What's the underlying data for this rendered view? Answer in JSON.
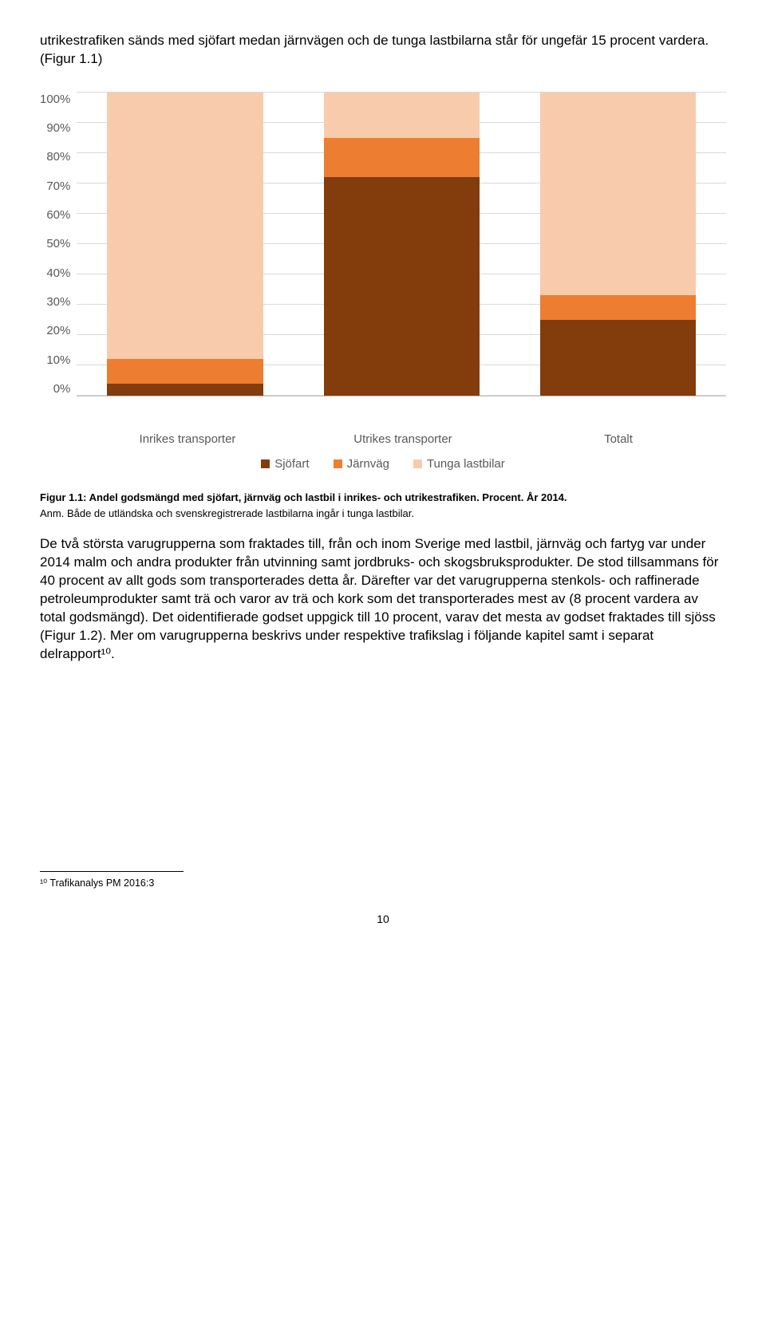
{
  "intro": "utrikestrafiken sänds med sjöfart medan järnvägen och de tunga lastbilarna står för ungefär 15 procent vardera. (Figur 1.1)",
  "chart": {
    "type": "stacked-bar",
    "ylim": [
      0,
      100
    ],
    "ytick_step": 10,
    "yticks": [
      "100%",
      "90%",
      "80%",
      "70%",
      "60%",
      "50%",
      "40%",
      "30%",
      "20%",
      "10%",
      "0%"
    ],
    "categories": [
      "Inrikes transporter",
      "Utrikes transporter",
      "Totalt"
    ],
    "series": [
      {
        "name": "Sjöfart",
        "color": "#833c0c"
      },
      {
        "name": "Järnväg",
        "color": "#ed7d31"
      },
      {
        "name": "Tunga lastbilar",
        "color": "#f8cbad"
      }
    ],
    "stacks": [
      {
        "sjofart": 4,
        "jarnvag": 8,
        "lastbilar": 88
      },
      {
        "sjofart": 72,
        "jarnvag": 13,
        "lastbilar": 15
      },
      {
        "sjofart": 25,
        "jarnvag": 8,
        "lastbilar": 67
      }
    ],
    "grid_color": "#d9d9d9",
    "tick_color": "#595959"
  },
  "legend": {
    "items": [
      "Sjöfart",
      "Järnväg",
      "Tunga lastbilar"
    ]
  },
  "caption": "Figur 1.1: Andel godsmängd med sjöfart, järnväg och lastbil i inrikes- och utrikestrafiken. Procent. År 2014.",
  "note": "Anm. Både de utländska och svenskregistrerade lastbilarna ingår i tunga lastbilar.",
  "body": "De två största varugrupperna som fraktades till, från och inom Sverige med lastbil, järnväg och fartyg var under 2014 malm och andra produkter från utvinning samt jordbruks- och skogsbruksprodukter. De stod tillsammans för 40 procent av allt gods som transporterades detta år. Därefter var det varugrupperna stenkols- och raffinerade petroleumprodukter samt trä och varor av trä och kork som det transporterades mest av (8 procent vardera av total godsmängd). Det oidentifierade godset uppgick till 10 procent, varav det mesta av godset fraktades till sjöss (Figur 1.2). Mer om varugrupperna beskrivs under respektive trafikslag i följande kapitel samt i separat delrapport¹⁰.",
  "footnote": "¹⁰ Trafikanalys PM 2016:3",
  "pagenum": "10"
}
